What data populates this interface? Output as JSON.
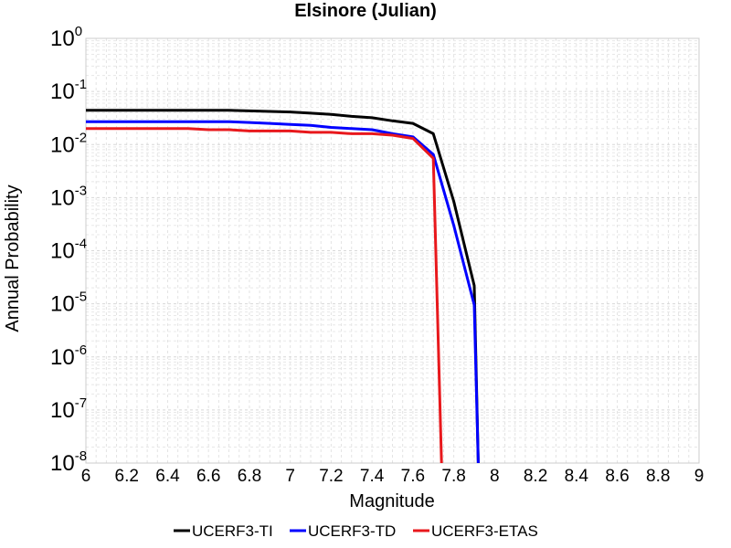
{
  "chart_data": {
    "type": "line",
    "title": "Elsinore (Julian)",
    "xlabel": "Magnitude",
    "ylabel": "Annual Probability",
    "xlim": [
      6,
      9
    ],
    "ylim": [
      1e-08,
      1
    ],
    "yscale": "log",
    "grid": true,
    "legend_position": "bottom",
    "x_ticks": [
      "6",
      "6.2",
      "6.4",
      "6.6",
      "6.8",
      "7",
      "7.2",
      "7.4",
      "7.6",
      "7.8",
      "8",
      "8.2",
      "8.4",
      "8.6",
      "8.8",
      "9"
    ],
    "y_ticks": [
      {
        "base": "10",
        "exp": "0"
      },
      {
        "base": "10",
        "exp": "-1"
      },
      {
        "base": "10",
        "exp": "-2"
      },
      {
        "base": "10",
        "exp": "-3"
      },
      {
        "base": "10",
        "exp": "-4"
      },
      {
        "base": "10",
        "exp": "-5"
      },
      {
        "base": "10",
        "exp": "-6"
      },
      {
        "base": "10",
        "exp": "-7"
      },
      {
        "base": "10",
        "exp": "-8"
      }
    ],
    "series": [
      {
        "name": "UCERF3-TI",
        "color": "#000000",
        "x": [
          6.0,
          6.1,
          6.2,
          6.3,
          6.4,
          6.5,
          6.6,
          6.7,
          6.8,
          6.9,
          7.0,
          7.1,
          7.2,
          7.3,
          7.4,
          7.5,
          7.6,
          7.7,
          7.8,
          7.9,
          7.92
        ],
        "y": [
          0.044,
          0.044,
          0.044,
          0.044,
          0.044,
          0.044,
          0.044,
          0.044,
          0.043,
          0.042,
          0.041,
          0.039,
          0.037,
          0.034,
          0.032,
          0.028,
          0.025,
          0.016,
          0.00085,
          2.2e-05,
          1e-08
        ]
      },
      {
        "name": "UCERF3-TD",
        "color": "#0000ff",
        "x": [
          6.0,
          6.1,
          6.2,
          6.3,
          6.4,
          6.5,
          6.6,
          6.7,
          6.8,
          6.9,
          7.0,
          7.1,
          7.2,
          7.3,
          7.4,
          7.5,
          7.6,
          7.7,
          7.8,
          7.9,
          7.92
        ],
        "y": [
          0.027,
          0.027,
          0.027,
          0.027,
          0.027,
          0.027,
          0.027,
          0.027,
          0.026,
          0.025,
          0.024,
          0.023,
          0.021,
          0.02,
          0.019,
          0.016,
          0.014,
          0.0065,
          0.0003,
          9.5e-06,
          1e-08
        ]
      },
      {
        "name": "UCERF3-ETAS",
        "color": "#e8181c",
        "x": [
          6.0,
          6.1,
          6.2,
          6.3,
          6.4,
          6.5,
          6.6,
          6.7,
          6.8,
          6.9,
          7.0,
          7.1,
          7.2,
          7.3,
          7.4,
          7.5,
          7.6,
          7.7,
          7.74
        ],
        "y": [
          0.02,
          0.02,
          0.02,
          0.02,
          0.02,
          0.02,
          0.019,
          0.019,
          0.018,
          0.018,
          0.018,
          0.017,
          0.017,
          0.016,
          0.016,
          0.015,
          0.013,
          0.0055,
          1e-08
        ]
      }
    ]
  }
}
